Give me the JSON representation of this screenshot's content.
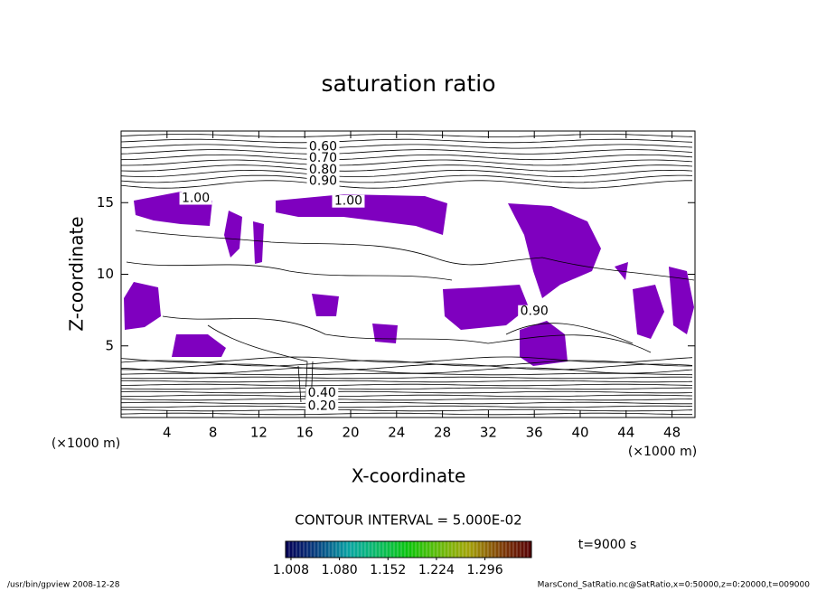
{
  "chart_data": {
    "type": "contour",
    "title": "saturation ratio",
    "x_label": "X-coordinate",
    "y_label": "Z-coordinate",
    "x_unit": "(×1000 m)",
    "y_unit": "(×1000 m)",
    "xlim": [
      0,
      50
    ],
    "xticks": [
      4,
      8,
      12,
      16,
      20,
      24,
      28,
      32,
      36,
      40,
      44,
      48
    ],
    "ylim": [
      0,
      20
    ],
    "yticks": [
      5,
      10,
      15
    ],
    "fill_color": "#7f00bf",
    "contour_labels": [
      {
        "value": 0.6,
        "label": "0.60",
        "x": 17.6,
        "y": 18.9
      },
      {
        "value": 0.7,
        "label": "0.70",
        "x": 17.6,
        "y": 18.1
      },
      {
        "value": 0.8,
        "label": "0.80",
        "x": 17.6,
        "y": 17.3
      },
      {
        "value": 0.9,
        "label": "0.90",
        "x": 17.6,
        "y": 16.5
      },
      {
        "value": 1,
        "label": "1.00",
        "x": 19.8,
        "y": 15.1
      },
      {
        "value": 1,
        "label": "1.00",
        "x": 6.5,
        "y": 15.3
      },
      {
        "value": 0.9,
        "label": "0.90",
        "x": 36.0,
        "y": 7.4
      },
      {
        "value": 0.4,
        "label": "0.40",
        "x": 17.5,
        "y": 1.7
      },
      {
        "value": 0.2,
        "label": "0.20",
        "x": 17.5,
        "y": 0.8
      }
    ],
    "contour_interval": "CONTOUR INTERVAL = 5.000E-02",
    "time_label": "t=9000 s",
    "colorbar_lim": [
      1.0,
      1.365
    ],
    "colorbar_ticks": [
      1.008,
      {
        "value": 1.08,
        "label": "1.080"
      },
      1.152,
      1.224,
      1.296
    ],
    "footer_left": "/usr/bin/gpview  2008-12-28",
    "footer_right": "MarsCond_SatRatio.nc@SatRatio,x=0:50000,z=0:20000,t=009000"
  }
}
